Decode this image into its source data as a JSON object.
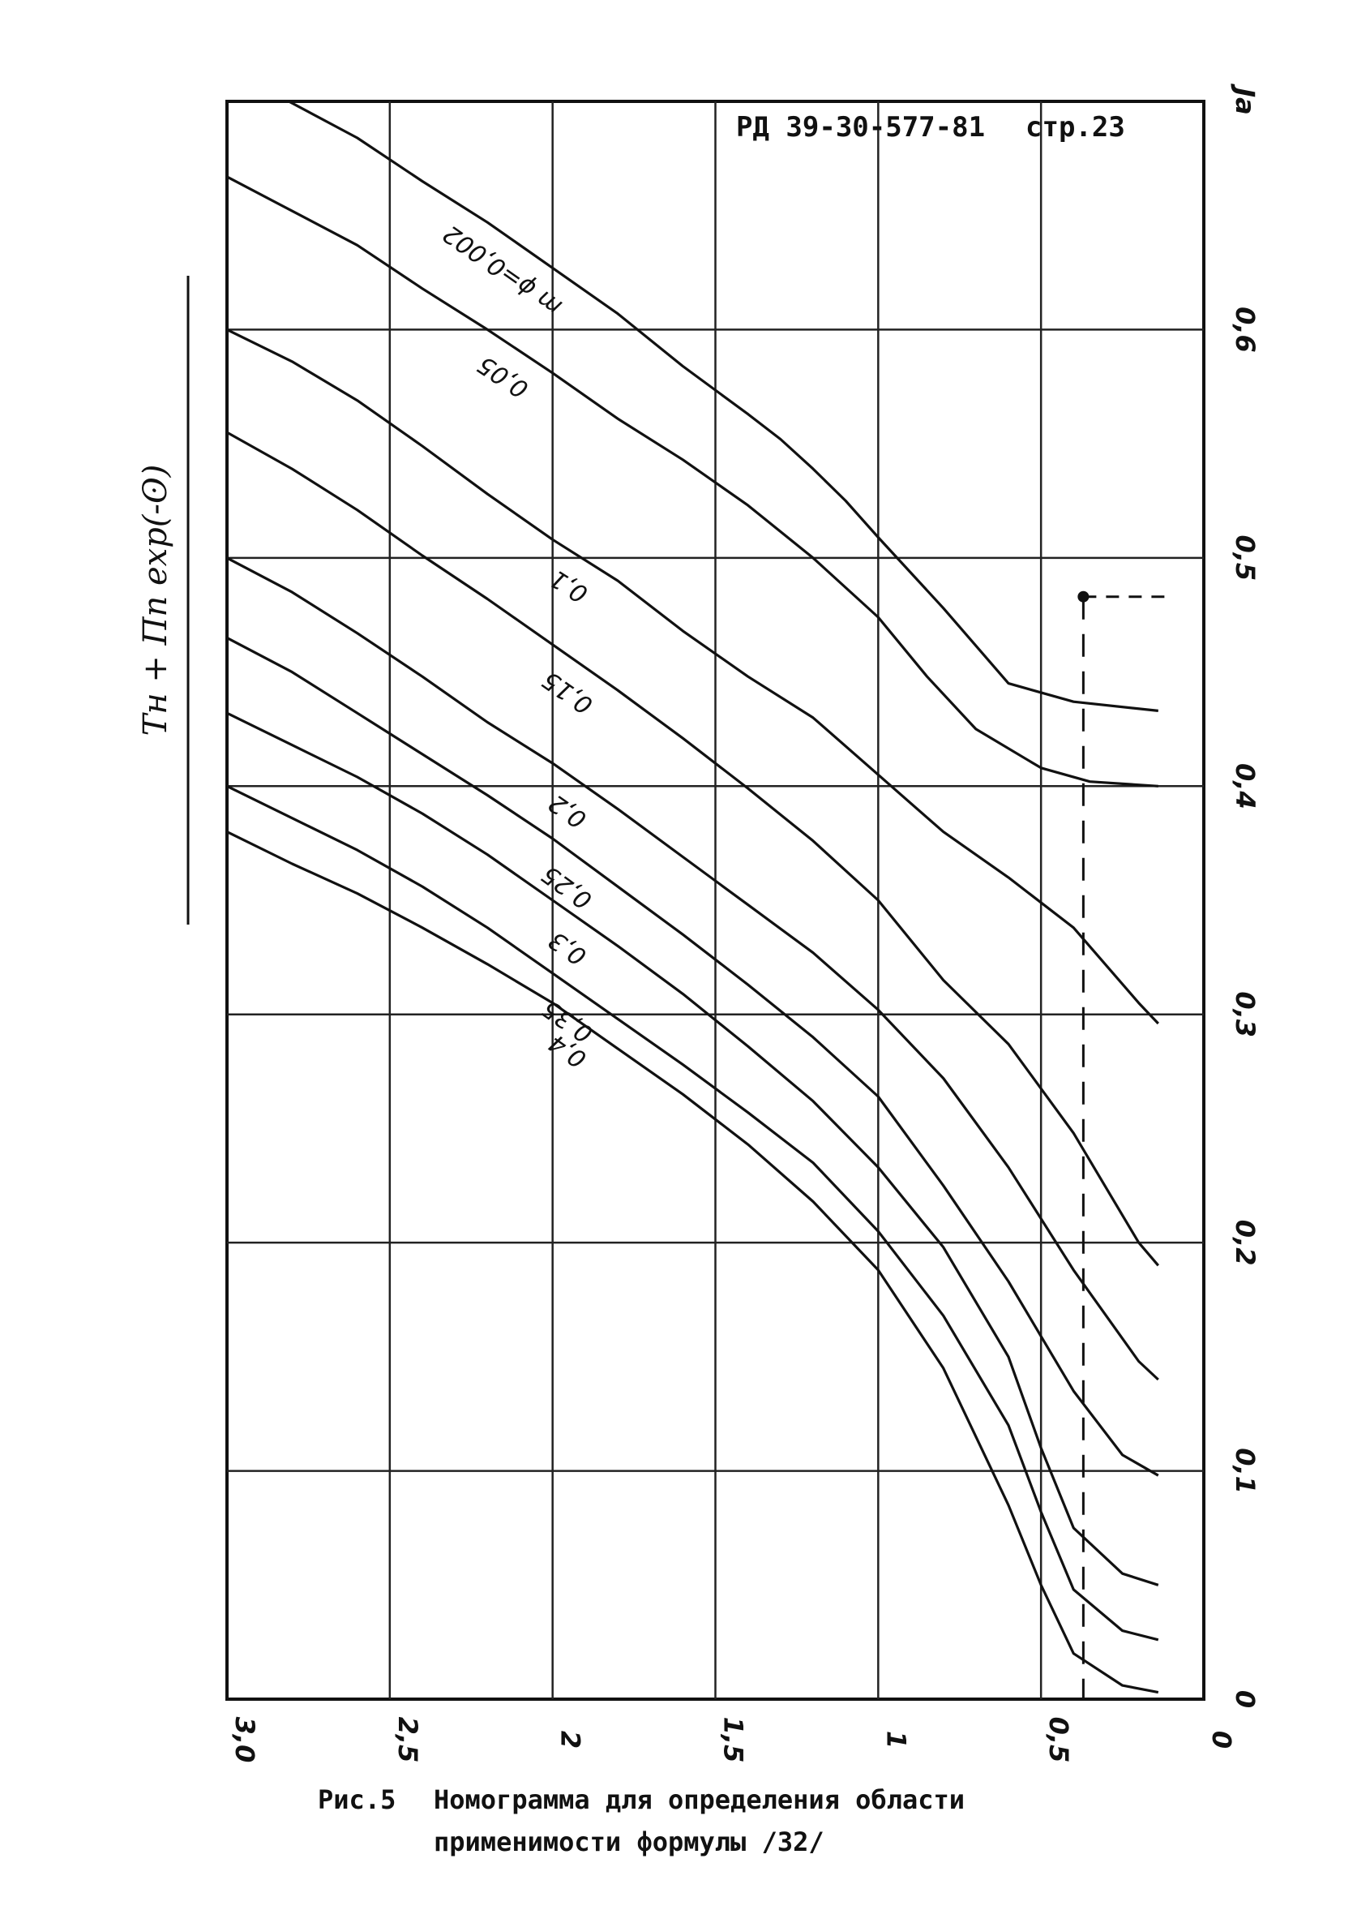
{
  "header": {
    "doc_ref": "РД 39-30-577-81",
    "page_label": "стр.23"
  },
  "caption": {
    "fig_label": "Рис.5",
    "line1": "Номограмма для определения области",
    "line2": "применимости формулы /32/"
  },
  "chart_data": {
    "type": "line",
    "axis_title_left": "Tн + Πn exp(-ʘ)",
    "axis_title_right": "Ja",
    "x_ticks": [
      {
        "value": 3.0,
        "label": "3,0"
      },
      {
        "value": 2.5,
        "label": "2,5"
      },
      {
        "value": 2.0,
        "label": "2"
      },
      {
        "value": 1.5,
        "label": "1,5"
      },
      {
        "value": 1.0,
        "label": "1"
      },
      {
        "value": 0.5,
        "label": "0,5"
      },
      {
        "value": 0.0,
        "label": "0"
      }
    ],
    "y_ticks": [
      {
        "value": 0.0,
        "label": "0"
      },
      {
        "value": 0.1,
        "label": "0,1"
      },
      {
        "value": 0.2,
        "label": "0,2"
      },
      {
        "value": 0.3,
        "label": "0,3"
      },
      {
        "value": 0.4,
        "label": "0,4"
      },
      {
        "value": 0.5,
        "label": "0,5"
      },
      {
        "value": 0.6,
        "label": "0,6"
      },
      {
        "value": 0.7,
        "label": "Ja"
      }
    ],
    "xlim": [
      0.0,
      3.0
    ],
    "ylim": [
      0.0,
      0.7
    ],
    "grid": true,
    "marker": {
      "x": 0.37,
      "y": 0.483
    },
    "series": [
      {
        "name": "m ϕ=0,002",
        "points": [
          [
            2.81,
            0.7
          ],
          [
            2.6,
            0.684
          ],
          [
            2.4,
            0.665
          ],
          [
            2.2,
            0.647
          ],
          [
            2.0,
            0.627
          ],
          [
            1.8,
            0.607
          ],
          [
            1.6,
            0.584
          ],
          [
            1.4,
            0.563
          ],
          [
            1.3,
            0.552
          ],
          [
            1.2,
            0.539
          ],
          [
            1.1,
            0.525
          ],
          [
            1.0,
            0.509
          ],
          [
            0.8,
            0.478
          ],
          [
            0.6,
            0.445
          ],
          [
            0.4,
            0.437
          ],
          [
            0.14,
            0.433
          ]
        ]
      },
      {
        "name": "0,05",
        "points": [
          [
            3.0,
            0.667
          ],
          [
            2.8,
            0.652
          ],
          [
            2.6,
            0.637
          ],
          [
            2.4,
            0.618
          ],
          [
            2.2,
            0.6
          ],
          [
            2.0,
            0.581
          ],
          [
            1.8,
            0.561
          ],
          [
            1.6,
            0.543
          ],
          [
            1.4,
            0.523
          ],
          [
            1.2,
            0.5
          ],
          [
            1.0,
            0.474
          ],
          [
            0.85,
            0.448
          ],
          [
            0.7,
            0.425
          ],
          [
            0.5,
            0.408
          ],
          [
            0.35,
            0.402
          ],
          [
            0.14,
            0.4
          ]
        ]
      },
      {
        "name": "0,1",
        "points": [
          [
            3.0,
            0.6
          ],
          [
            2.8,
            0.586
          ],
          [
            2.6,
            0.569
          ],
          [
            2.4,
            0.549
          ],
          [
            2.2,
            0.528
          ],
          [
            2.0,
            0.508
          ],
          [
            1.8,
            0.49
          ],
          [
            1.6,
            0.468
          ],
          [
            1.4,
            0.448
          ],
          [
            1.2,
            0.43
          ],
          [
            1.0,
            0.405
          ],
          [
            0.8,
            0.38
          ],
          [
            0.6,
            0.36
          ],
          [
            0.4,
            0.338
          ],
          [
            0.2,
            0.305
          ],
          [
            0.14,
            0.296
          ]
        ]
      },
      {
        "name": "0,15",
        "points": [
          [
            3.0,
            0.555
          ],
          [
            2.8,
            0.539
          ],
          [
            2.6,
            0.521
          ],
          [
            2.4,
            0.501
          ],
          [
            2.2,
            0.482
          ],
          [
            2.0,
            0.462
          ],
          [
            1.8,
            0.442
          ],
          [
            1.6,
            0.421
          ],
          [
            1.4,
            0.399
          ],
          [
            1.2,
            0.376
          ],
          [
            1.0,
            0.35
          ],
          [
            0.8,
            0.315
          ],
          [
            0.6,
            0.287
          ],
          [
            0.4,
            0.248
          ],
          [
            0.2,
            0.2
          ],
          [
            0.14,
            0.19
          ]
        ]
      },
      {
        "name": "0,2",
        "points": [
          [
            3.0,
            0.5
          ],
          [
            2.8,
            0.485
          ],
          [
            2.6,
            0.467
          ],
          [
            2.4,
            0.448
          ],
          [
            2.2,
            0.428
          ],
          [
            2.0,
            0.41
          ],
          [
            1.8,
            0.39
          ],
          [
            1.6,
            0.369
          ],
          [
            1.4,
            0.348
          ],
          [
            1.2,
            0.327
          ],
          [
            1.0,
            0.302
          ],
          [
            0.8,
            0.272
          ],
          [
            0.6,
            0.233
          ],
          [
            0.4,
            0.188
          ],
          [
            0.2,
            0.148
          ],
          [
            0.14,
            0.14
          ]
        ]
      },
      {
        "name": "0,25",
        "points": [
          [
            3.0,
            0.465
          ],
          [
            2.8,
            0.45
          ],
          [
            2.6,
            0.432
          ],
          [
            2.4,
            0.414
          ],
          [
            2.2,
            0.396
          ],
          [
            2.0,
            0.377
          ],
          [
            1.8,
            0.356
          ],
          [
            1.6,
            0.335
          ],
          [
            1.4,
            0.313
          ],
          [
            1.2,
            0.29
          ],
          [
            1.0,
            0.264
          ],
          [
            0.8,
            0.225
          ],
          [
            0.6,
            0.183
          ],
          [
            0.4,
            0.135
          ],
          [
            0.25,
            0.107
          ],
          [
            0.14,
            0.098
          ]
        ]
      },
      {
        "name": "0,3",
        "points": [
          [
            3.0,
            0.432
          ],
          [
            2.8,
            0.418
          ],
          [
            2.6,
            0.404
          ],
          [
            2.4,
            0.388
          ],
          [
            2.2,
            0.37
          ],
          [
            2.0,
            0.35
          ],
          [
            1.8,
            0.33
          ],
          [
            1.6,
            0.309
          ],
          [
            1.4,
            0.286
          ],
          [
            1.2,
            0.262
          ],
          [
            1.0,
            0.233
          ],
          [
            0.8,
            0.198
          ],
          [
            0.6,
            0.15
          ],
          [
            0.5,
            0.11
          ],
          [
            0.4,
            0.075
          ],
          [
            0.25,
            0.055
          ],
          [
            0.14,
            0.05
          ]
        ]
      },
      {
        "name": "0,35",
        "points": [
          [
            3.0,
            0.4
          ],
          [
            2.8,
            0.386
          ],
          [
            2.6,
            0.372
          ],
          [
            2.4,
            0.356
          ],
          [
            2.2,
            0.338
          ],
          [
            2.0,
            0.318
          ],
          [
            1.8,
            0.298
          ],
          [
            1.6,
            0.278
          ],
          [
            1.4,
            0.257
          ],
          [
            1.2,
            0.235
          ],
          [
            1.0,
            0.205
          ],
          [
            0.8,
            0.168
          ],
          [
            0.6,
            0.12
          ],
          [
            0.5,
            0.082
          ],
          [
            0.4,
            0.048
          ],
          [
            0.25,
            0.03
          ],
          [
            0.14,
            0.026
          ]
        ]
      },
      {
        "name": "0,4",
        "points": [
          [
            3.0,
            0.38
          ],
          [
            2.8,
            0.366
          ],
          [
            2.6,
            0.353
          ],
          [
            2.4,
            0.338
          ],
          [
            2.2,
            0.322
          ],
          [
            2.0,
            0.305
          ],
          [
            1.8,
            0.285
          ],
          [
            1.6,
            0.265
          ],
          [
            1.4,
            0.243
          ],
          [
            1.2,
            0.218
          ],
          [
            1.0,
            0.188
          ],
          [
            0.8,
            0.145
          ],
          [
            0.6,
            0.085
          ],
          [
            0.5,
            0.05
          ],
          [
            0.4,
            0.02
          ],
          [
            0.25,
            0.006
          ],
          [
            0.14,
            0.003
          ]
        ]
      }
    ]
  }
}
